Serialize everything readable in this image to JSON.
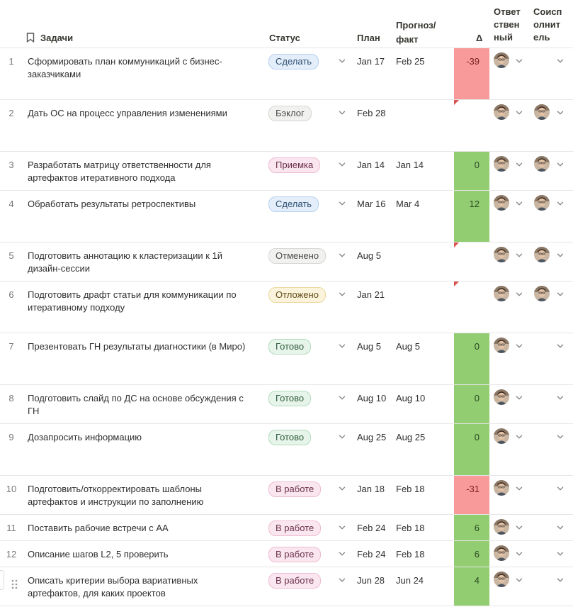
{
  "header": {
    "tasks": "Задачи",
    "status": "Статус",
    "plan": "План",
    "forecast_l1": "Прогноз/",
    "forecast_l2": "факт",
    "delta": "Δ",
    "resp_l1": "Ответ",
    "resp_l2": "ствен",
    "resp_l3": "ный",
    "co_l1": "Соисп",
    "co_l2": "олнит",
    "co_l3": "ель"
  },
  "status_styles": {
    "Сделать": {
      "bg": "#e3eefa",
      "border": "#b7d0ee",
      "color": "#2f4f72"
    },
    "Бэклог": {
      "bg": "#f1f1ef",
      "border": "#d6d6d3",
      "color": "#4a4a4a"
    },
    "Приемка": {
      "bg": "#fae6ef",
      "border": "#efbcd2",
      "color": "#6a2f48"
    },
    "Отменено": {
      "bg": "#f1f1ef",
      "border": "#d6d6d3",
      "color": "#4a4a4a"
    },
    "Отложено": {
      "bg": "#fbf3db",
      "border": "#ecd99d",
      "color": "#5f4b17"
    },
    "Готово": {
      "bg": "#e6f4ea",
      "border": "#b4dcbf",
      "color": "#2d5a39"
    },
    "В работе": {
      "bg": "#fae6ef",
      "border": "#efbcd2",
      "color": "#6a2f48"
    }
  },
  "delta_colors": {
    "negative": "#f99a9a",
    "positive": "#92cd72"
  },
  "rows": [
    {
      "num": "1",
      "task_l1": "Сформировать план коммуникаций с бизнес-",
      "task_l2": "заказчиками",
      "status": "Сделать",
      "plan": "Jan 17",
      "fact": "Feb 25",
      "delta": "-39",
      "resp": true,
      "co": false
    },
    {
      "num": "2",
      "task_l1": "Дать ОС на процесс управления изменениями",
      "task_l2": "",
      "status": "Бэклог",
      "plan": "Feb 28",
      "fact": "",
      "delta": "",
      "resp": true,
      "co": true
    },
    {
      "num": "3",
      "task_l1": "Разработать матрицу ответственности для",
      "task_l2": "артефактов итеративного подхода",
      "status": "Приемка",
      "plan": "Jan 14",
      "fact": "Jan 14",
      "delta": "0",
      "resp": true,
      "co": true
    },
    {
      "num": "4",
      "task_l1": "Обработать результаты ретроспективы",
      "task_l2": "",
      "status": "Сделать",
      "plan": "Mar 16",
      "fact": "Mar 4",
      "delta": "12",
      "resp": true,
      "co": true
    },
    {
      "num": "5",
      "task_l1": "Подготовить аннотацию к кластеризации к 1й",
      "task_l2": "дизайн-сессии",
      "status": "Отменено",
      "plan": "Aug 5",
      "fact": "",
      "delta": "",
      "resp": true,
      "co": true
    },
    {
      "num": "6",
      "task_l1": "Подготовить драфт статьи для коммуникации по",
      "task_l2": "итеративному подходу",
      "status": "Отложено",
      "plan": "Jan 21",
      "fact": "",
      "delta": "",
      "resp": true,
      "co": true
    },
    {
      "num": "7",
      "task_l1": "Презентовать ГН результаты диагностики (в Миро)",
      "task_l2": "",
      "status": "Готово",
      "plan": "Aug 5",
      "fact": "Aug 5",
      "delta": "0",
      "resp": true,
      "co": false
    },
    {
      "num": "8",
      "task_l1": "Подготовить слайд по ДС на основе обсуждения с",
      "task_l2": "ГН",
      "status": "Готово",
      "plan": "Aug 10",
      "fact": "Aug 10",
      "delta": "0",
      "resp": true,
      "co": false
    },
    {
      "num": "9",
      "task_l1": "Дозапросить информацию",
      "task_l2": "",
      "status": "Готово",
      "plan": "Aug 25",
      "fact": "Aug 25",
      "delta": "0",
      "resp": true,
      "co": false
    },
    {
      "num": "10",
      "task_l1": "Подготовить/откорректировать шаблоны",
      "task_l2": "артефактов и инструкции по заполнению",
      "status": "В работе",
      "plan": "Jan 18",
      "fact": "Feb 18",
      "delta": "-31",
      "resp": true,
      "co": false
    },
    {
      "num": "11",
      "task_l1": "Поставить рабочие встречи с АА",
      "task_l2": "",
      "status": "В работе",
      "plan": "Feb 24",
      "fact": "Feb 18",
      "delta": "6",
      "resp": true,
      "co": false
    },
    {
      "num": "12",
      "task_l1": "Описание шагов L2, 5 проверить",
      "task_l2": "",
      "status": "В работе",
      "plan": "Feb 24",
      "fact": "Feb 18",
      "delta": "6",
      "resp": true,
      "co": false
    },
    {
      "num": "",
      "task_l1": "Описать критерии выбора вариативных",
      "task_l2": "артефактов, для каких проектов",
      "status": "В работе",
      "plan": "Jun 28",
      "fact": "Jun 24",
      "delta": "4",
      "resp": true,
      "co": false
    }
  ]
}
